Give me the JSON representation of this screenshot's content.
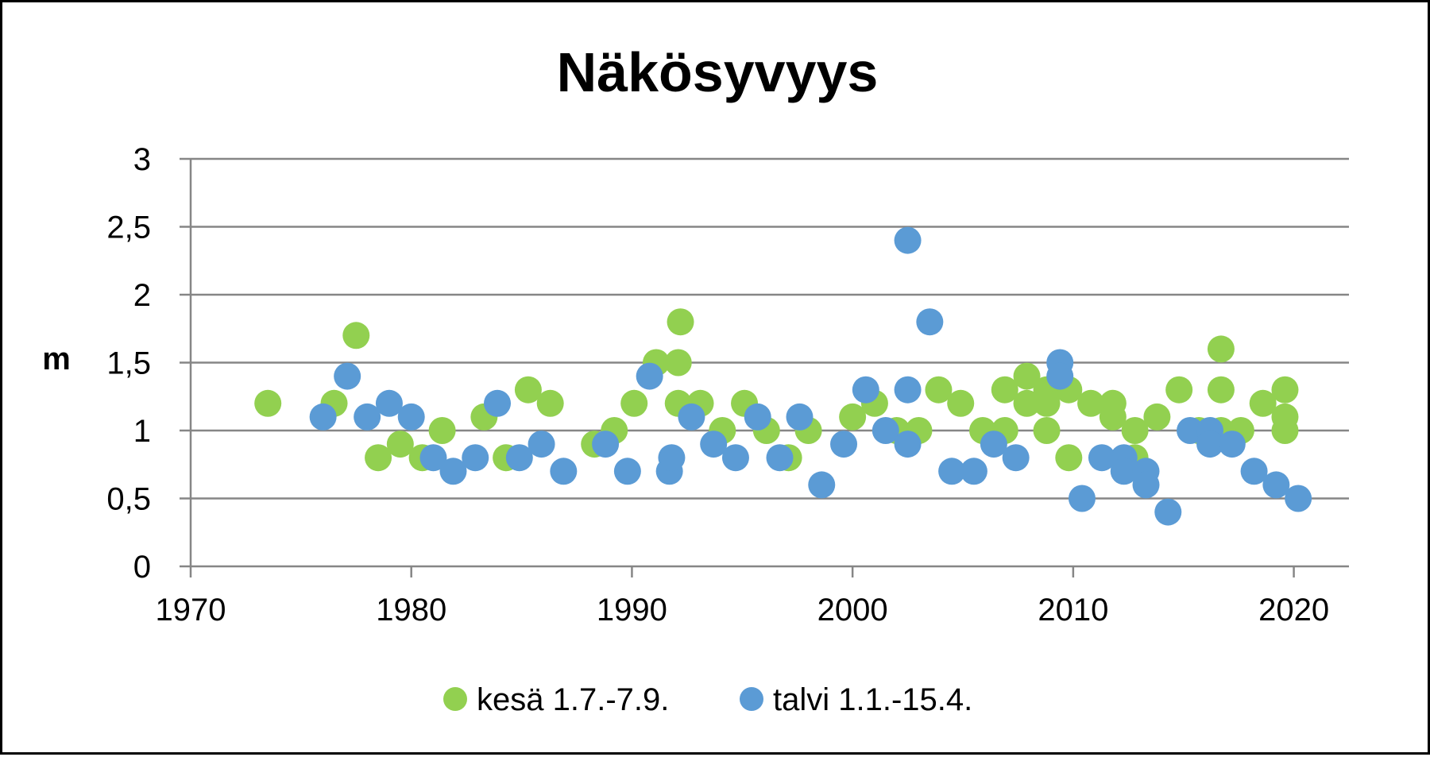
{
  "chart_data": {
    "type": "scatter",
    "title": "Näkösyvyys",
    "xlabel": "",
    "ylabel": "m",
    "xlim": [
      1970,
      2022.5
    ],
    "ylim": [
      0,
      3
    ],
    "x_ticks": [
      1970,
      1980,
      1990,
      2000,
      2010,
      2020
    ],
    "y_ticks": [
      0,
      0.5,
      1,
      1.5,
      2,
      2.5,
      3
    ],
    "y_tick_labels": [
      "0",
      "0,5",
      "1",
      "1,5",
      "2",
      "2,5",
      "3"
    ],
    "grid": "horizontal",
    "legend_position": "bottom",
    "series": [
      {
        "name": "kesä 1.7.-7.9.",
        "color": "#92D050",
        "points": [
          [
            1973.5,
            1.2
          ],
          [
            1976.5,
            1.2
          ],
          [
            1977.5,
            1.7
          ],
          [
            1978.5,
            0.8
          ],
          [
            1979.5,
            0.9
          ],
          [
            1980.5,
            0.8
          ],
          [
            1981.4,
            1.0
          ],
          [
            1983.3,
            1.1
          ],
          [
            1984.3,
            0.8
          ],
          [
            1985.3,
            1.3
          ],
          [
            1986.3,
            1.2
          ],
          [
            1988.3,
            0.9
          ],
          [
            1989.2,
            1.0
          ],
          [
            1990.1,
            1.2
          ],
          [
            1991.1,
            1.5
          ],
          [
            1992.1,
            1.2
          ],
          [
            1992.1,
            1.5
          ],
          [
            1992.2,
            1.8
          ],
          [
            1993.1,
            1.2
          ],
          [
            1994.1,
            1.0
          ],
          [
            1995.1,
            1.2
          ],
          [
            1996.1,
            1.0
          ],
          [
            1997.1,
            0.8
          ],
          [
            1998.0,
            1.0
          ],
          [
            2000.0,
            1.1
          ],
          [
            2001.0,
            1.2
          ],
          [
            2002.0,
            1.0
          ],
          [
            2003.0,
            1.0
          ],
          [
            2003.9,
            1.3
          ],
          [
            2004.9,
            1.2
          ],
          [
            2005.9,
            1.0
          ],
          [
            2006.9,
            1.0
          ],
          [
            2006.9,
            1.3
          ],
          [
            2007.9,
            1.2
          ],
          [
            2007.9,
            1.4
          ],
          [
            2008.8,
            1.3
          ],
          [
            2008.8,
            1.2
          ],
          [
            2008.8,
            1.0
          ],
          [
            2009.8,
            1.3
          ],
          [
            2009.8,
            0.8
          ],
          [
            2010.8,
            1.2
          ],
          [
            2011.8,
            1.2
          ],
          [
            2011.8,
            1.1
          ],
          [
            2012.8,
            1.0
          ],
          [
            2012.8,
            0.8
          ],
          [
            2013.8,
            1.1
          ],
          [
            2014.8,
            1.3
          ],
          [
            2015.7,
            1.0
          ],
          [
            2016.7,
            1.6
          ],
          [
            2016.7,
            1.3
          ],
          [
            2016.7,
            1.0
          ],
          [
            2017.6,
            1.0
          ],
          [
            2018.6,
            1.2
          ],
          [
            2019.6,
            1.3
          ],
          [
            2019.6,
            1.1
          ],
          [
            2019.6,
            1.0
          ]
        ]
      },
      {
        "name": "talvi 1.1.-15.4.",
        "color": "#5B9BD5",
        "points": [
          [
            1976.0,
            1.1
          ],
          [
            1977.1,
            1.4
          ],
          [
            1978.0,
            1.1
          ],
          [
            1979.0,
            1.2
          ],
          [
            1980.0,
            1.1
          ],
          [
            1981.0,
            0.8
          ],
          [
            1981.9,
            0.7
          ],
          [
            1982.9,
            0.8
          ],
          [
            1983.9,
            1.2
          ],
          [
            1984.9,
            0.8
          ],
          [
            1985.9,
            0.9
          ],
          [
            1986.9,
            0.7
          ],
          [
            1988.8,
            0.9
          ],
          [
            1989.8,
            0.7
          ],
          [
            1990.8,
            1.4
          ],
          [
            1991.7,
            0.7
          ],
          [
            1991.8,
            0.8
          ],
          [
            1992.7,
            1.1
          ],
          [
            1993.7,
            0.9
          ],
          [
            1994.7,
            0.8
          ],
          [
            1995.7,
            1.1
          ],
          [
            1996.7,
            0.8
          ],
          [
            1997.6,
            1.1
          ],
          [
            1998.6,
            0.6
          ],
          [
            1999.6,
            0.9
          ],
          [
            2000.6,
            1.3
          ],
          [
            2001.5,
            1.0
          ],
          [
            2002.5,
            2.4
          ],
          [
            2002.5,
            1.3
          ],
          [
            2002.5,
            0.9
          ],
          [
            2003.5,
            1.8
          ],
          [
            2004.5,
            0.7
          ],
          [
            2005.5,
            0.7
          ],
          [
            2006.4,
            0.9
          ],
          [
            2007.4,
            0.8
          ],
          [
            2009.4,
            1.5
          ],
          [
            2009.4,
            1.4
          ],
          [
            2010.4,
            0.5
          ],
          [
            2011.3,
            0.8
          ],
          [
            2012.3,
            0.8
          ],
          [
            2012.3,
            0.7
          ],
          [
            2013.3,
            0.7
          ],
          [
            2013.3,
            0.6
          ],
          [
            2014.3,
            0.4
          ],
          [
            2015.3,
            1.0
          ],
          [
            2016.2,
            1.0
          ],
          [
            2016.2,
            0.9
          ],
          [
            2017.2,
            0.9
          ],
          [
            2018.2,
            0.7
          ],
          [
            2019.2,
            0.6
          ],
          [
            2020.2,
            0.5
          ]
        ]
      }
    ]
  }
}
